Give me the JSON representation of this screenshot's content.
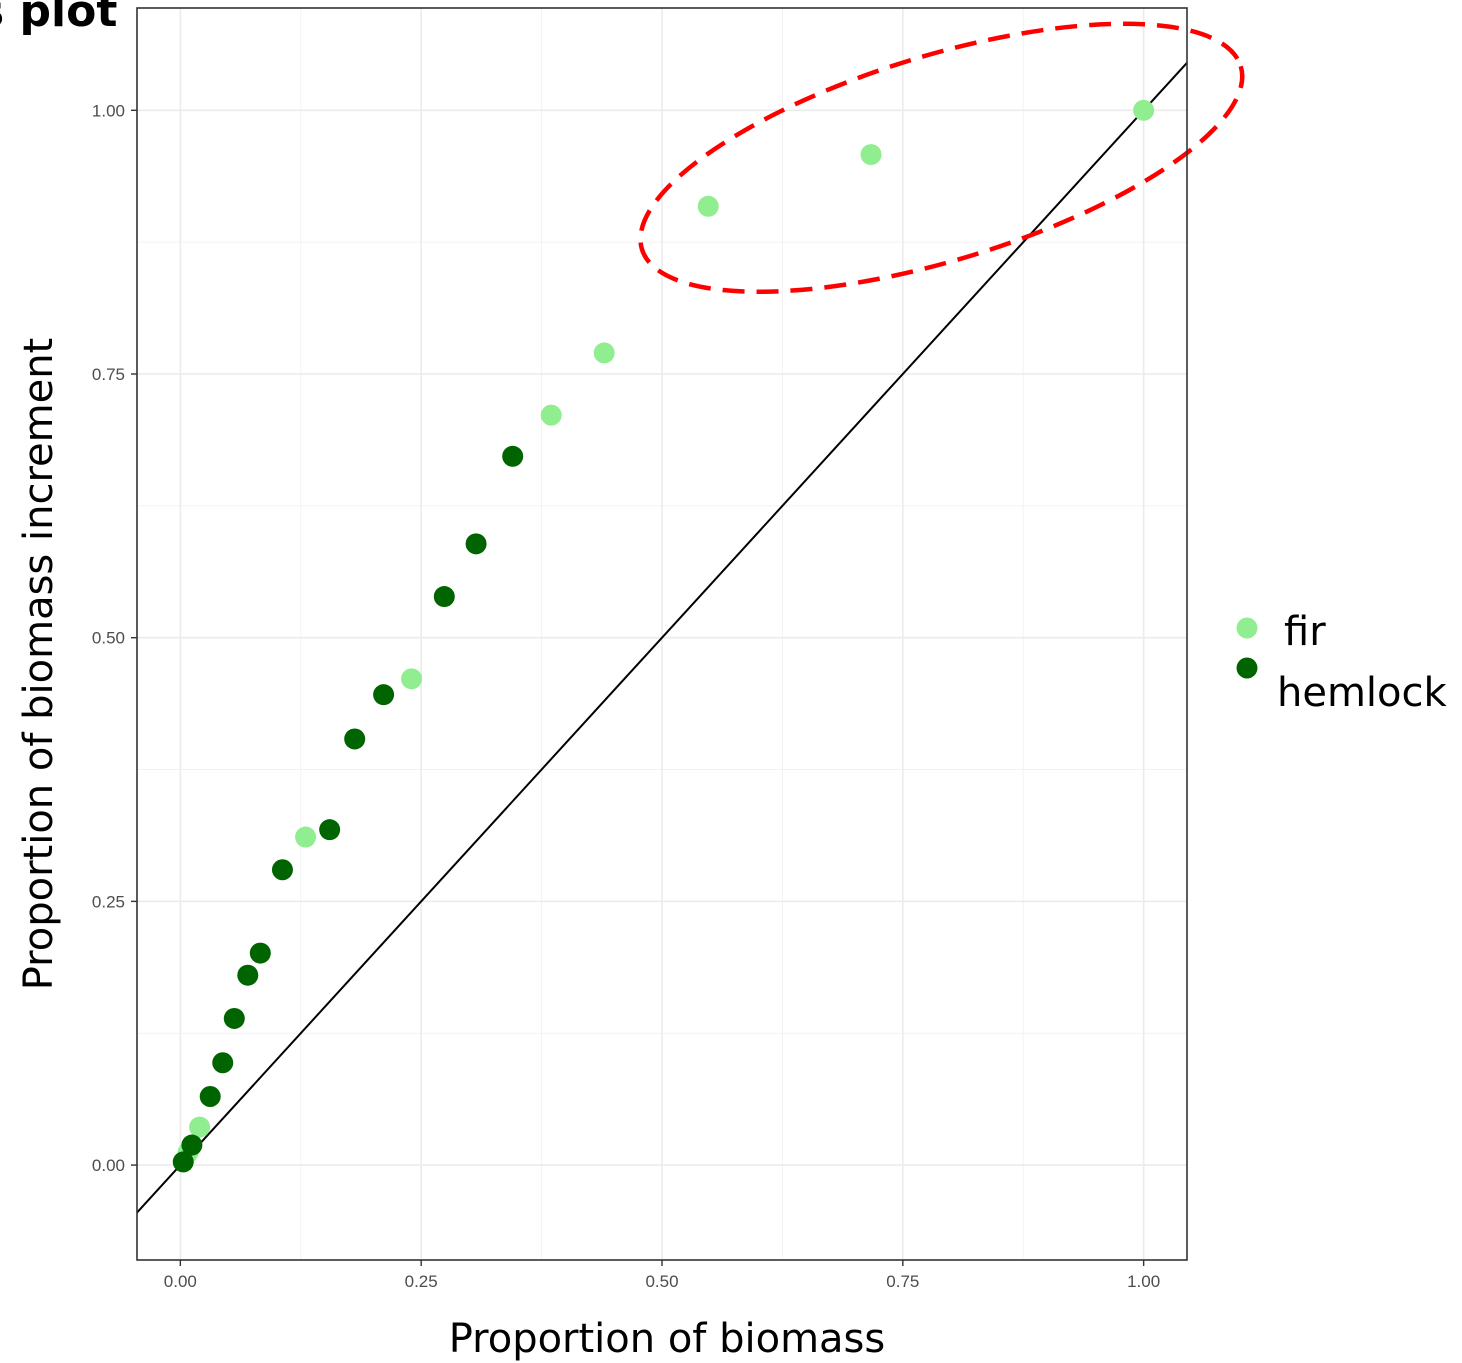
{
  "chart_data": {
    "type": "scatter",
    "title": "s plot",
    "xlabel": "Proportion of biomass",
    "ylabel": "Proportion of biomass increment",
    "xlim": [
      -0.045,
      1.045
    ],
    "ylim": [
      -0.09,
      1.097
    ],
    "x_ticks": [
      "0.00",
      "0.25",
      "0.50",
      "0.75",
      "1.00"
    ],
    "y_ticks": [
      "0.00",
      "0.25",
      "0.50",
      "0.75",
      "1.00"
    ],
    "grid": true,
    "reference_line": {
      "type": "identity",
      "slope": 1,
      "intercept": 0,
      "color": "#000000"
    },
    "legend_position": "right",
    "series": [
      {
        "name": "fir",
        "color": "#90ee90",
        "points": [
          {
            "x": 0.008,
            "y": 0.012
          },
          {
            "x": 0.02,
            "y": 0.036
          },
          {
            "x": 0.13,
            "y": 0.311
          },
          {
            "x": 0.24,
            "y": 0.461
          },
          {
            "x": 0.385,
            "y": 0.711
          },
          {
            "x": 0.44,
            "y": 0.77
          },
          {
            "x": 0.548,
            "y": 0.909
          },
          {
            "x": 0.717,
            "y": 0.958
          },
          {
            "x": 1.0,
            "y": 1.0
          }
        ]
      },
      {
        "name": "hemlock",
        "color": "#006400",
        "points": [
          {
            "x": 0.003,
            "y": 0.003
          },
          {
            "x": 0.012,
            "y": 0.019
          },
          {
            "x": 0.031,
            "y": 0.065
          },
          {
            "x": 0.044,
            "y": 0.097
          },
          {
            "x": 0.056,
            "y": 0.139
          },
          {
            "x": 0.07,
            "y": 0.18
          },
          {
            "x": 0.083,
            "y": 0.201
          },
          {
            "x": 0.106,
            "y": 0.28
          },
          {
            "x": 0.155,
            "y": 0.318
          },
          {
            "x": 0.181,
            "y": 0.404
          },
          {
            "x": 0.211,
            "y": 0.446
          },
          {
            "x": 0.274,
            "y": 0.539
          },
          {
            "x": 0.307,
            "y": 0.589
          },
          {
            "x": 0.345,
            "y": 0.672
          }
        ]
      }
    ],
    "annotation": {
      "shape": "dashed-ellipse",
      "color": "#ff0000",
      "center": {
        "x": 0.79,
        "y": 0.955
      },
      "semi_axis_x": 0.325,
      "semi_axis_y": 0.097,
      "rotation_deg": -17
    }
  }
}
